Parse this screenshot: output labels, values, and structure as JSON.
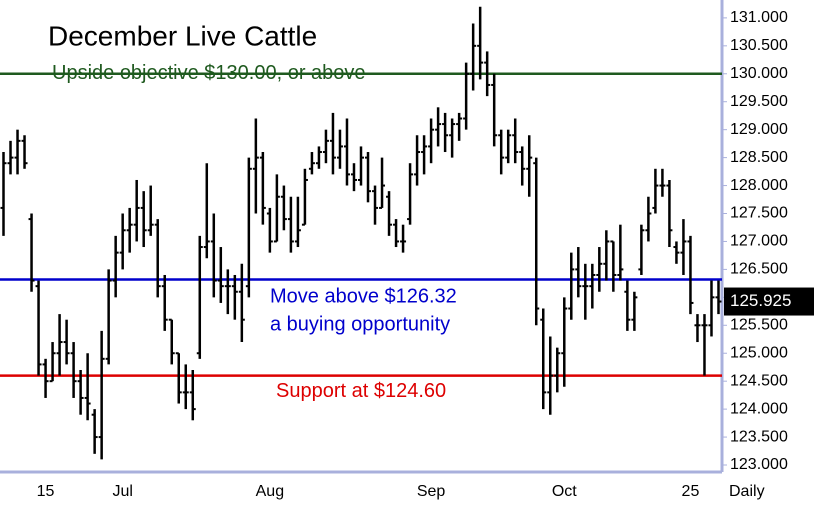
{
  "chart_data": {
    "type": "ohlc",
    "title": "December Live Cattle",
    "categories": [
      null,
      null,
      null,
      null,
      null,
      null,
      "15",
      null,
      null,
      null,
      null,
      null,
      null,
      null,
      null,
      null,
      null,
      "Jul",
      null,
      null,
      null,
      null,
      null,
      null,
      null,
      null,
      null,
      null,
      null,
      null,
      null,
      null,
      null,
      null,
      null,
      null,
      null,
      null,
      "Aug",
      null,
      null,
      null,
      null,
      null,
      null,
      null,
      null,
      null,
      null,
      null,
      null,
      null,
      null,
      null,
      null,
      null,
      null,
      null,
      null,
      null,
      null,
      "Sep",
      null,
      null,
      null,
      null,
      null,
      null,
      null,
      null,
      null,
      null,
      null,
      null,
      null,
      null,
      null,
      null,
      null,
      null,
      "Oct",
      null,
      null,
      null,
      null,
      null,
      null,
      null,
      null,
      null,
      null,
      null,
      null,
      null,
      null,
      null,
      null,
      null,
      "25",
      null,
      null,
      null,
      null
    ],
    "x_axis_label": "Daily",
    "series": [
      {
        "color": "#000000",
        "open": [
          127.6,
          128.4,
          128.5,
          128.8,
          127.4,
          126.2,
          124.8,
          124.5,
          125.0,
          125.2,
          125.0,
          124.5,
          124.2,
          123.9,
          123.5,
          124.9,
          126.3,
          126.8,
          127.2,
          127.3,
          127.6,
          127.2,
          127.3,
          126.2,
          125.6,
          125.0,
          124.3,
          124.3,
          125.0,
          126.9,
          127.0,
          126.3,
          126.2,
          126.2,
          126.1,
          126.2,
          128.3,
          128.5,
          127.5,
          127.0,
          127.8,
          127.4,
          127.0,
          127.3,
          128.3,
          128.4,
          128.6,
          128.8,
          128.5,
          128.7,
          128.2,
          128.1,
          128.5,
          127.9,
          127.6,
          127.8,
          127.3,
          127.0,
          127.4,
          128.2,
          128.6,
          128.7,
          129.0,
          129.1,
          128.9,
          129.1,
          129.2,
          130.0,
          130.5,
          130.2,
          129.8,
          128.9,
          128.5,
          128.9,
          128.6,
          128.3,
          128.4,
          125.6,
          124.3,
          124.6,
          125.0,
          125.8,
          126.5,
          126.2,
          126.2,
          126.4,
          126.6,
          127.0,
          126.4,
          126.1,
          125.6,
          126.5,
          127.2,
          127.6,
          128.0,
          128.0,
          126.9,
          126.8,
          127.0,
          125.5,
          125.5,
          125.5,
          126.0
        ],
        "high": [
          128.6,
          128.8,
          129.0,
          128.9,
          127.5,
          126.3,
          124.9,
          125.2,
          125.7,
          125.6,
          125.2,
          124.7,
          125.0,
          124.0,
          125.4,
          126.5,
          127.1,
          127.5,
          127.6,
          128.1,
          127.9,
          128.0,
          127.4,
          126.4,
          125.6,
          125.0,
          124.8,
          124.7,
          127.1,
          128.4,
          127.5,
          126.9,
          126.5,
          126.4,
          126.6,
          128.5,
          129.2,
          128.6,
          127.6,
          128.2,
          128.0,
          127.8,
          127.8,
          128.3,
          128.6,
          128.7,
          129.0,
          129.3,
          129.0,
          129.2,
          128.4,
          128.7,
          128.6,
          128.0,
          128.5,
          127.9,
          127.4,
          127.3,
          128.4,
          128.9,
          128.9,
          129.2,
          129.4,
          129.3,
          129.2,
          129.3,
          130.2,
          130.9,
          131.2,
          130.4,
          130.0,
          129.0,
          129.0,
          129.2,
          128.7,
          128.9,
          128.5,
          125.8,
          125.3,
          125.1,
          126.0,
          126.8,
          126.9,
          126.6,
          126.6,
          126.9,
          127.2,
          127.0,
          127.3,
          126.3,
          126.1,
          127.3,
          127.8,
          128.3,
          128.3,
          128.1,
          127.0,
          127.4,
          127.1,
          125.7,
          125.7,
          126.3,
          126.3
        ],
        "low": [
          127.1,
          128.2,
          128.2,
          128.3,
          126.1,
          124.6,
          124.2,
          124.5,
          124.6,
          124.8,
          124.2,
          123.9,
          123.8,
          123.2,
          123.1,
          124.8,
          126.0,
          126.5,
          126.8,
          127.0,
          126.9,
          127.1,
          126.0,
          125.4,
          124.8,
          124.1,
          124.0,
          123.8,
          124.9,
          126.7,
          126.0,
          125.9,
          125.7,
          125.6,
          125.2,
          126.0,
          127.5,
          127.3,
          126.8,
          127.0,
          127.2,
          126.8,
          126.9,
          127.3,
          128.2,
          128.3,
          128.4,
          128.2,
          128.3,
          128.0,
          127.9,
          128.0,
          127.7,
          127.3,
          127.6,
          127.1,
          126.9,
          126.8,
          127.3,
          128.0,
          128.2,
          128.4,
          128.7,
          128.6,
          128.5,
          128.8,
          129.0,
          129.7,
          129.9,
          129.6,
          128.7,
          128.2,
          128.4,
          128.4,
          128.0,
          127.8,
          125.5,
          124.0,
          123.9,
          124.3,
          124.4,
          125.6,
          126.0,
          125.6,
          125.8,
          126.1,
          126.3,
          126.1,
          126.3,
          125.4,
          125.4,
          126.4,
          127.0,
          127.5,
          127.8,
          126.9,
          126.6,
          126.4,
          125.7,
          125.2,
          124.6,
          125.3,
          125.7
        ],
        "close": [
          128.4,
          128.5,
          128.8,
          128.4,
          126.3,
          124.8,
          124.5,
          125.0,
          125.2,
          125.0,
          124.5,
          124.2,
          124.1,
          123.5,
          124.9,
          126.3,
          126.8,
          127.2,
          127.3,
          127.6,
          127.2,
          127.3,
          126.2,
          125.6,
          125.0,
          124.3,
          124.3,
          124.0,
          126.9,
          127.0,
          126.3,
          126.2,
          126.2,
          126.1,
          125.6,
          128.3,
          128.5,
          127.6,
          127.0,
          127.8,
          127.4,
          127.0,
          127.2,
          128.1,
          128.4,
          128.6,
          128.8,
          128.5,
          128.7,
          128.2,
          128.1,
          128.5,
          127.9,
          127.6,
          128.0,
          127.3,
          127.0,
          127.0,
          128.2,
          128.6,
          128.7,
          129.0,
          129.1,
          128.9,
          129.1,
          129.2,
          130.0,
          130.5,
          130.2,
          129.8,
          128.9,
          128.5,
          128.9,
          128.6,
          128.3,
          128.5,
          125.8,
          124.3,
          124.6,
          125.0,
          125.8,
          126.5,
          126.2,
          126.2,
          126.4,
          126.6,
          127.0,
          126.4,
          126.5,
          125.6,
          126.0,
          127.2,
          127.5,
          128.0,
          128.0,
          127.2,
          126.8,
          127.0,
          125.9,
          125.5,
          125.5,
          126.0,
          125.925
        ]
      }
    ],
    "last_price": 125.925,
    "levels": [
      {
        "value": 130,
        "color": "#1f5a1f",
        "label": [
          "Upside objective $130.00, or above"
        ]
      },
      {
        "value": 126.32,
        "color": "#0000cc",
        "label": [
          "Move above $126.32",
          "a buying opportunity"
        ]
      },
      {
        "value": 124.6,
        "color": "#dd0000",
        "label": [
          "Support at $124.60"
        ]
      }
    ],
    "ylim": [
      122.875,
      131.32
    ],
    "yticks": [
      {
        "value": 123,
        "label": "123.000"
      },
      {
        "value": 123.5,
        "label": "123.500"
      },
      {
        "value": 124,
        "label": "124.000"
      },
      {
        "value": 124.5,
        "label": "124.500"
      },
      {
        "value": 125,
        "label": "125.000"
      },
      {
        "value": 125.5,
        "label": "125.500"
      },
      {
        "value": 126,
        "label": "126.000"
      },
      {
        "value": 126.5,
        "label": "126.500"
      },
      {
        "value": 127,
        "label": "127.000"
      },
      {
        "value": 127.5,
        "label": "127.500"
      },
      {
        "value": 128,
        "label": "128.000"
      },
      {
        "value": 128.5,
        "label": "128.500"
      },
      {
        "value": 129,
        "label": "129.000"
      },
      {
        "value": 129.5,
        "label": "129.500"
      },
      {
        "value": 130,
        "label": "130.000"
      },
      {
        "value": 130.5,
        "label": "130.500"
      },
      {
        "value": 131,
        "label": "131.000"
      }
    ]
  }
}
